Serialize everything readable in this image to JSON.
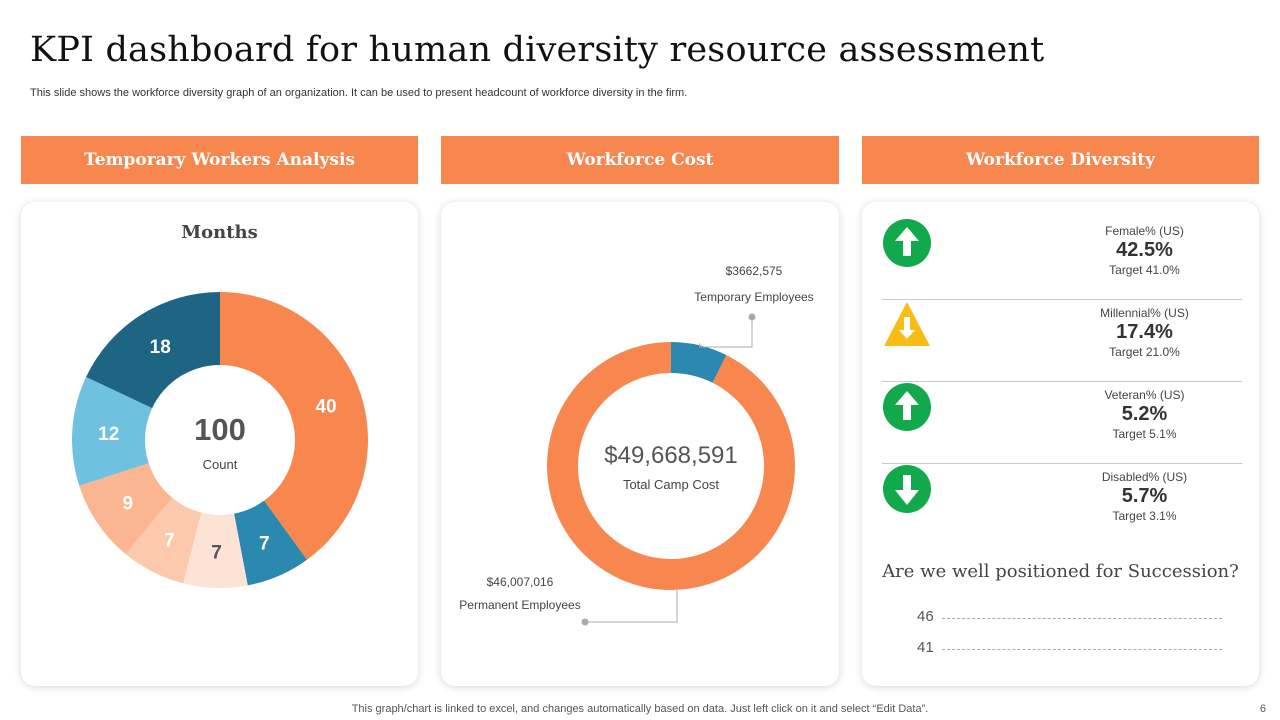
{
  "slide": {
    "title": "KPI dashboard for human diversity resource assessment",
    "subtitle": "This slide shows the workforce diversity graph of an organization. It can be used to present headcount of workforce diversity in the firm.",
    "footer": "This graph/chart is linked to excel,  and changes automatically based on data. Just left click on it and select “Edit Data”.",
    "page_number": "6"
  },
  "panels": {
    "temporary": {
      "header": "Temporary Workers Analysis",
      "heading": "Months",
      "center_value": "100",
      "center_label": "Count"
    },
    "cost": {
      "header": "Workforce Cost",
      "total_value": "$49,668,591",
      "total_label": "Total Camp Cost",
      "temp_value": "$3662,575",
      "temp_label": "Temporary  Employees",
      "perm_value": "$46,007,016",
      "perm_label": "Permanent Employees"
    },
    "diversity": {
      "header": "Workforce Diversity",
      "kpis": [
        {
          "label": "Female% (US)",
          "value": "42.5%",
          "target": "Target 41.0%",
          "icon": "arrow-up-green"
        },
        {
          "label": "Millennial% (US)",
          "value": "17.4%",
          "target": "Target 21.0%",
          "icon": "warning-down-yellow"
        },
        {
          "label": "Veteran% (US)",
          "value": "5.2%",
          "target": "Target 5.1%",
          "icon": "arrow-up-green"
        },
        {
          "label": "Disabled% (US)",
          "value": "5.7%",
          "target": "Target 3.1%",
          "icon": "arrow-down-green"
        }
      ],
      "succession_title": "Are we well positioned for Succession?",
      "succession_values": [
        "46",
        "41"
      ]
    }
  },
  "colors": {
    "accent": "#f8874f",
    "green": "#12a84c",
    "yellow": "#f7bd14"
  },
  "chart_data": [
    {
      "type": "pie",
      "title": "Months",
      "center_value": 100,
      "center_label": "Count",
      "values": [
        40,
        7,
        7,
        7,
        9,
        12,
        18
      ],
      "colors": [
        "#f8874f",
        "#2b89b0",
        "#fde2d6",
        "#fcc9ad",
        "#fbb591",
        "#6fc1e0",
        "#1d6582"
      ]
    },
    {
      "type": "pie",
      "title": "Total Camp Cost",
      "categories": [
        "Temporary  Employees",
        "Permanent Employees"
      ],
      "values": [
        3662575,
        46007016
      ],
      "colors": [
        "#2b89b0",
        "#f8874f"
      ]
    }
  ]
}
